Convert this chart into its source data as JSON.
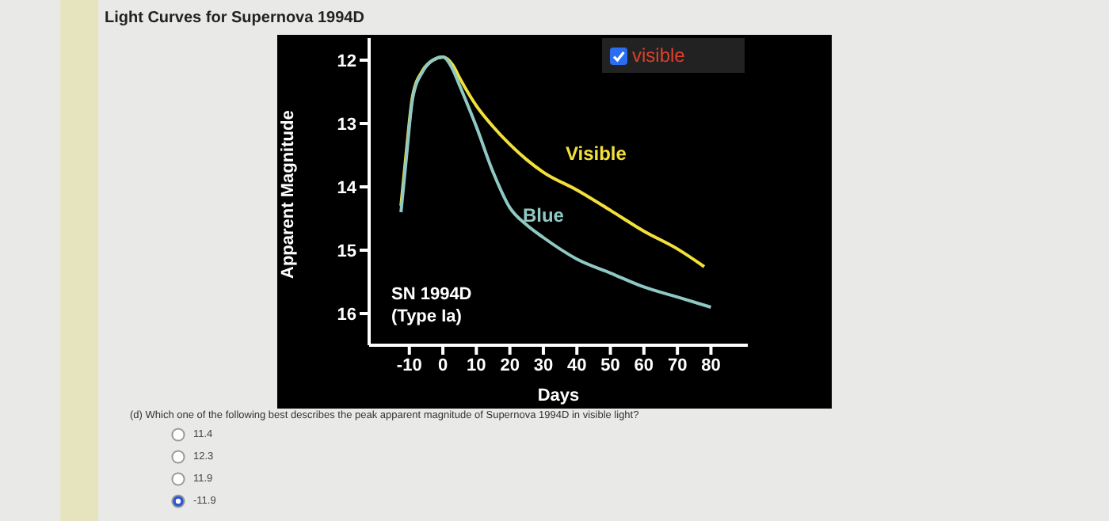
{
  "chart_data": {
    "type": "line",
    "title": "Light Curves for Supernova 1994D",
    "xlabel": "Days",
    "ylabel": "Apparent Magnitude",
    "annotations": [
      "SN 1994D",
      "(Type Ia)",
      "visible",
      "(d) Which one of the following best describes the peak apparent magnitude of Supernova 1994D in visible light?",
      "11.4",
      "12.3",
      "11.9",
      "-11.9"
    ],
    "series": [
      {
        "name": "Visible",
        "color": "#f2e03a",
        "x": [
          -12.5,
          -11,
          -9,
          -6,
          -3,
          0,
          3,
          5,
          10,
          15,
          20,
          25,
          30,
          40,
          50,
          60,
          70,
          78
        ],
        "values": [
          14.3,
          13.5,
          12.56,
          12.16,
          12.0,
          11.95,
          12.08,
          12.28,
          12.72,
          13.05,
          13.33,
          13.57,
          13.77,
          14.05,
          14.37,
          14.7,
          14.98,
          15.26
        ]
      },
      {
        "name": "Blue",
        "color": "#8fc9c4",
        "x": [
          -12.5,
          -11,
          -9,
          -6,
          -3,
          0,
          3,
          5,
          10,
          15,
          20,
          25,
          30,
          40,
          50,
          60,
          70,
          80
        ],
        "values": [
          14.4,
          13.6,
          12.6,
          12.18,
          12.0,
          11.95,
          12.15,
          12.4,
          13.05,
          13.77,
          14.33,
          14.6,
          14.8,
          15.14,
          15.36,
          15.58,
          15.74,
          15.9
        ]
      }
    ],
    "xlim": [
      -22,
      91
    ],
    "xticks": [
      -10,
      0,
      10,
      20,
      30,
      40,
      50,
      60,
      70,
      80
    ],
    "ylim": [
      16.5,
      11.65
    ],
    "yticks": [
      12,
      13,
      14,
      15,
      16
    ],
    "grid": false,
    "legend": false,
    "marker": "none",
    "line_style": "solid"
  }
}
